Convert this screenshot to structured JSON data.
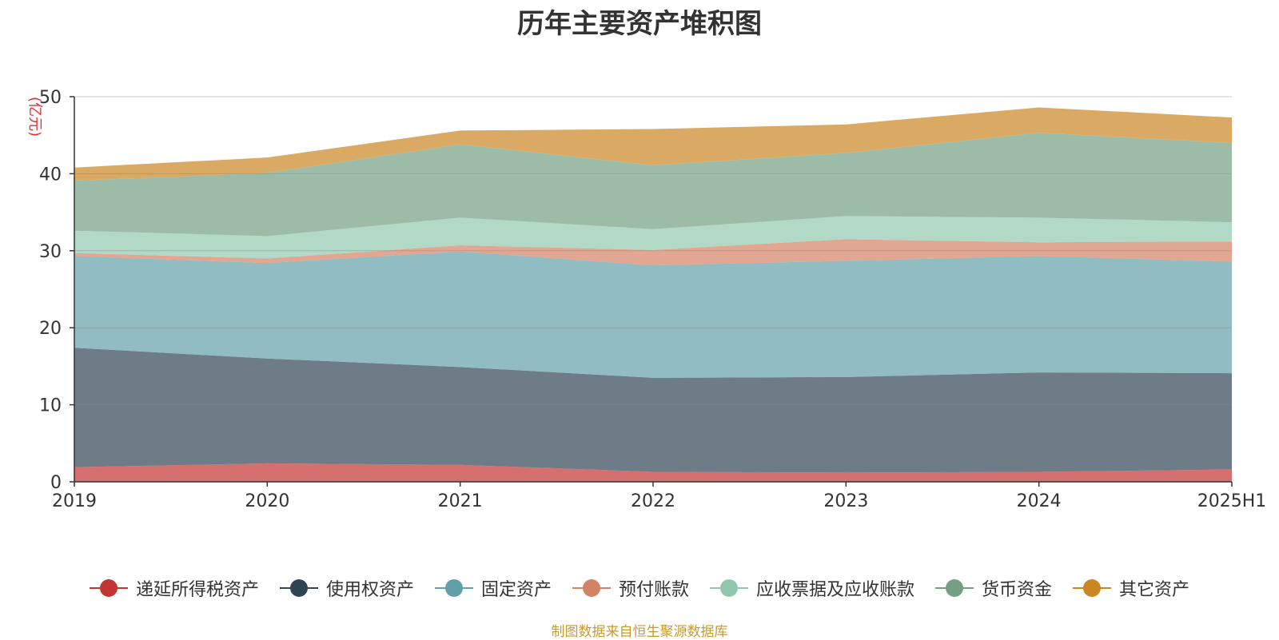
{
  "chart_data": {
    "type": "area",
    "stacked": true,
    "title": "历年主要资产堆积图",
    "ylabel": "(亿元)",
    "xlabel": "",
    "ylim": [
      0,
      50
    ],
    "yticks": [
      0,
      10,
      20,
      30,
      40,
      50
    ],
    "categories": [
      "2019",
      "2020",
      "2021",
      "2022",
      "2023",
      "2024",
      "2025H1"
    ],
    "series": [
      {
        "name": "递延所得税资产",
        "color": "#c23531",
        "values": [
          1.9,
          2.4,
          2.2,
          1.3,
          1.2,
          1.3,
          1.6
        ]
      },
      {
        "name": "使用权资产",
        "color": "#2f4554",
        "values": [
          15.5,
          13.6,
          12.7,
          12.2,
          12.4,
          12.9,
          12.5
        ]
      },
      {
        "name": "固定资产",
        "color": "#61a0a8",
        "values": [
          11.9,
          12.4,
          15.0,
          14.6,
          15.1,
          15.1,
          14.5
        ]
      },
      {
        "name": "预付账款",
        "color": "#d48265",
        "values": [
          0.4,
          0.6,
          0.8,
          2.0,
          2.8,
          1.8,
          2.6
        ]
      },
      {
        "name": "应收票据及应收账款",
        "color": "#91c7ae",
        "values": [
          2.9,
          2.9,
          3.6,
          2.7,
          3.0,
          3.2,
          2.5
        ]
      },
      {
        "name": "货币资金",
        "color": "#749f83",
        "values": [
          6.5,
          8.2,
          9.5,
          8.3,
          8.2,
          11.0,
          10.3
        ]
      },
      {
        "name": "其它资产",
        "color": "#ca8622",
        "values": [
          1.7,
          2.0,
          1.8,
          4.7,
          3.7,
          3.3,
          3.3
        ]
      }
    ],
    "legend_position": "bottom",
    "grid": true
  },
  "source_text": "制图数据来自恒生聚源数据库"
}
